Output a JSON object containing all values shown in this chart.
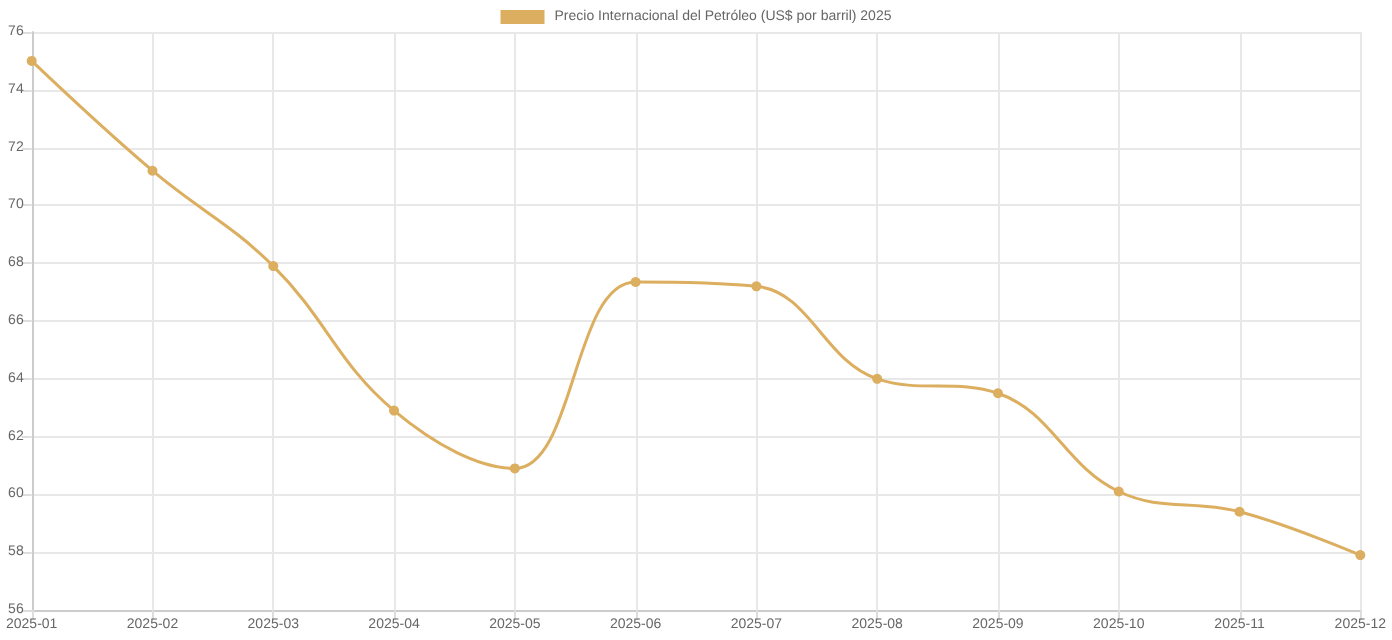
{
  "chart_data": {
    "type": "line",
    "categories": [
      "2025-01",
      "2025-02",
      "2025-03",
      "2025-04",
      "2025-05",
      "2025-06",
      "2025-07",
      "2025-08",
      "2025-09",
      "2025-10",
      "2025-11",
      "2025-12"
    ],
    "series": [
      {
        "name": "Precio Internacional del Petróleo (US$ por barril) 2025",
        "color": "#dcae5f",
        "values": [
          75.0,
          71.2,
          67.9,
          62.9,
          60.9,
          67.35,
          67.2,
          64.0,
          63.5,
          60.1,
          59.4,
          57.9
        ]
      }
    ],
    "ylim": [
      56,
      76
    ],
    "yticks": [
      56,
      58,
      60,
      62,
      64,
      66,
      68,
      70,
      72,
      74,
      76
    ],
    "grid": true,
    "legend": "top",
    "marker": "circle",
    "line_style": "solid"
  }
}
